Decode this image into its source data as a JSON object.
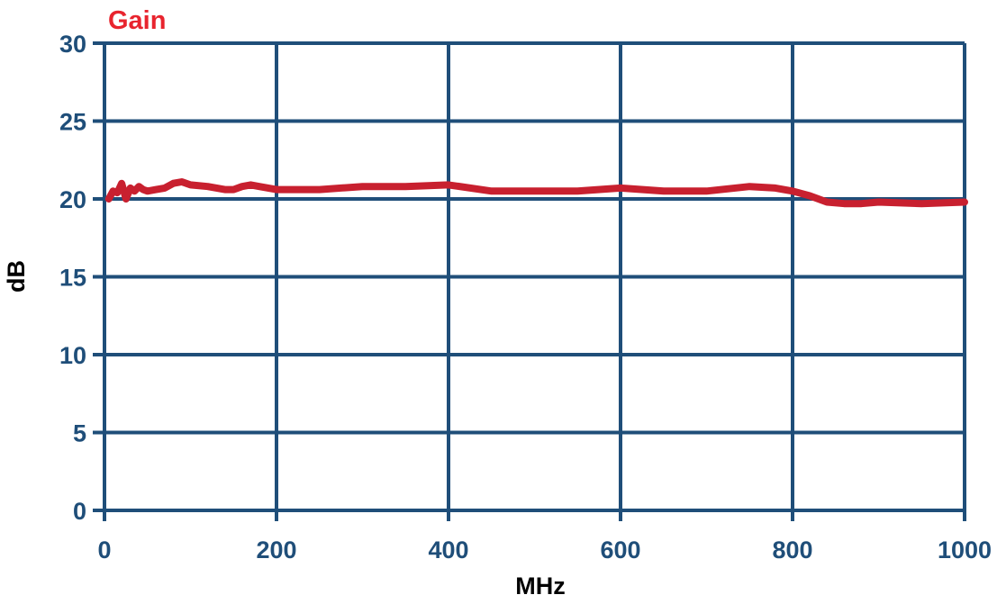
{
  "chart_data": {
    "type": "line",
    "title": "Gain",
    "xlabel": "MHz",
    "ylabel": "dB",
    "xlim": [
      0,
      1000
    ],
    "ylim": [
      0,
      30
    ],
    "xticks": [
      0,
      200,
      400,
      600,
      800,
      1000
    ],
    "yticks": [
      0,
      5,
      10,
      15,
      20,
      25,
      30
    ],
    "grid": true,
    "legend": "none",
    "colors": {
      "title": "#e8242e",
      "axis_text": "#1f4e79",
      "label_text": "#000000",
      "grid": "#1f4e79",
      "series": "#c8202f"
    },
    "series": [
      {
        "x": [
          5,
          10,
          15,
          20,
          25,
          30,
          35,
          40,
          45,
          50,
          60,
          70,
          80,
          90,
          100,
          120,
          140,
          150,
          160,
          170,
          180,
          200,
          250,
          300,
          350,
          400,
          450,
          500,
          550,
          600,
          650,
          700,
          750,
          780,
          800,
          820,
          840,
          860,
          880,
          900,
          950,
          1000
        ],
        "y": [
          20.0,
          20.5,
          20.4,
          21.0,
          20.0,
          20.7,
          20.5,
          20.8,
          20.6,
          20.5,
          20.6,
          20.7,
          21.0,
          21.1,
          20.9,
          20.8,
          20.6,
          20.6,
          20.8,
          20.9,
          20.8,
          20.6,
          20.6,
          20.8,
          20.8,
          20.9,
          20.5,
          20.5,
          20.5,
          20.7,
          20.5,
          20.5,
          20.8,
          20.7,
          20.5,
          20.2,
          19.8,
          19.7,
          19.7,
          19.8,
          19.7,
          19.8
        ]
      }
    ]
  }
}
